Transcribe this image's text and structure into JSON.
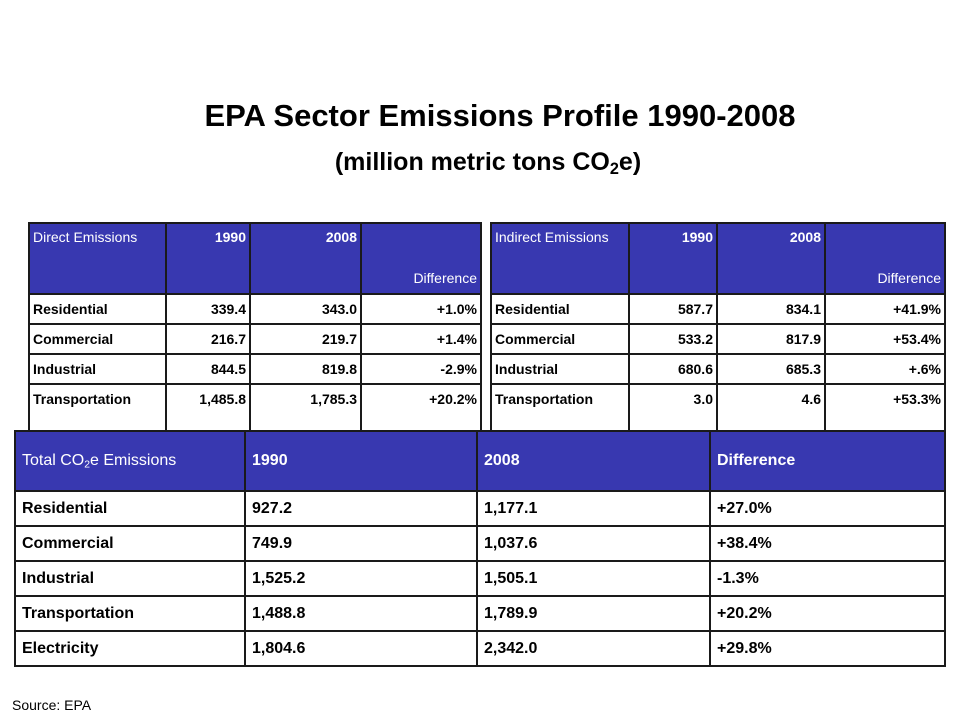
{
  "title": "EPA Sector Emissions Profile 1990-2008",
  "subtitle": {
    "prefix": "(million metric tons CO",
    "subscript": "2",
    "suffix": "e)"
  },
  "direct_table": {
    "headers": [
      "Direct Emissions",
      "1990",
      "2008",
      "Difference"
    ],
    "rows": [
      [
        "Residential",
        "339.4",
        "343.0",
        "+1.0%"
      ],
      [
        "Commercial",
        "216.7",
        "219.7",
        "+1.4%"
      ],
      [
        "Industrial",
        "844.5",
        "819.8",
        "-2.9%"
      ],
      [
        "Transportation",
        "1,485.8",
        "1,785.3",
        "+20.2%"
      ]
    ]
  },
  "indirect_table": {
    "headers": [
      "Indirect Emissions",
      "1990",
      "2008",
      "Difference"
    ],
    "rows": [
      [
        "Residential",
        "587.7",
        "834.1",
        "+41.9%"
      ],
      [
        "Commercial",
        "533.2",
        "817.9",
        "+53.4%"
      ],
      [
        "Industrial",
        "680.6",
        "685.3",
        "+.6%"
      ],
      [
        "Transportation",
        "3.0",
        "4.6",
        "+53.3%"
      ]
    ]
  },
  "total_table": {
    "header_first": {
      "prefix": "Total CO",
      "subscript": "2",
      "suffix": "e Emissions"
    },
    "headers": [
      "1990",
      "2008",
      "Difference"
    ],
    "rows": [
      [
        "Residential",
        "927.2",
        "1,177.1",
        "+27.0%"
      ],
      [
        "Commercial",
        "749.9",
        "1,037.6",
        "+38.4%"
      ],
      [
        "Industrial",
        "1,525.2",
        "1,505.1",
        "-1.3%"
      ],
      [
        "Transportation",
        "1,488.8",
        "1,789.9",
        "+20.2%"
      ],
      [
        "Electricity",
        "1,804.6",
        "2,342.0",
        "+29.8%"
      ]
    ]
  },
  "source": "Source: EPA"
}
